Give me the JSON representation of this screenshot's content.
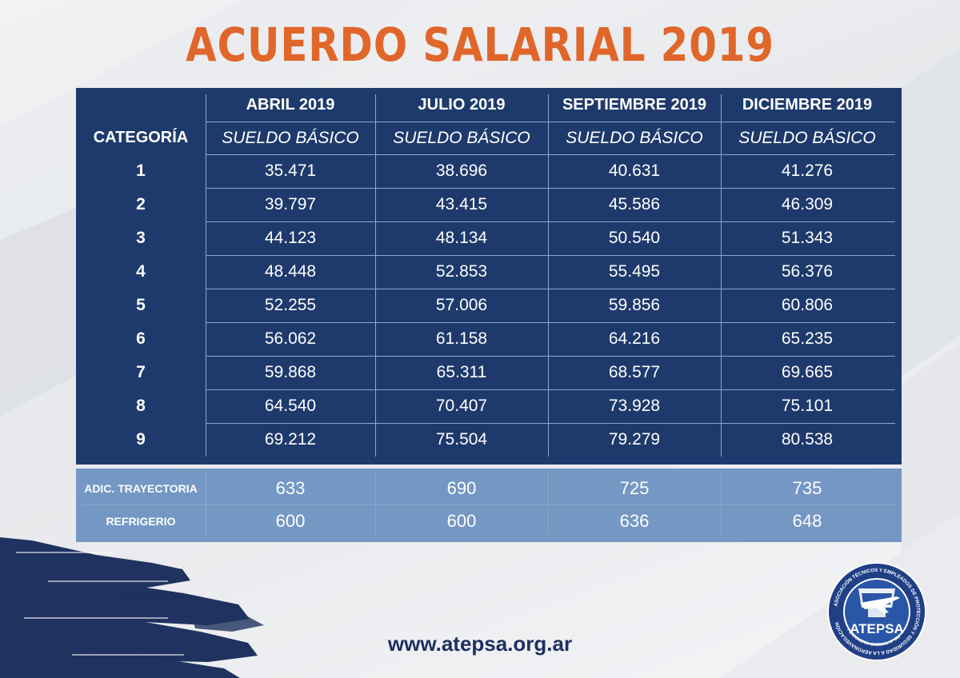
{
  "title": "ACUERDO SALARIAL 2019",
  "header": {
    "periods": [
      "ABRIL 2019",
      "JULIO 2019",
      "SEPTIEMBRE 2019",
      "DICIEMBRE 2019"
    ],
    "category_label": "CATEGORÍA",
    "sub_label": "SUELDO BÁSICO"
  },
  "rows": [
    {
      "cat": "1",
      "values": [
        "35.471",
        "38.696",
        "40.631",
        "41.276"
      ]
    },
    {
      "cat": "2",
      "values": [
        "39.797",
        "43.415",
        "45.586",
        "46.309"
      ]
    },
    {
      "cat": "3",
      "values": [
        "44.123",
        "48.134",
        "50.540",
        "51.343"
      ]
    },
    {
      "cat": "4",
      "values": [
        "48.448",
        "52.853",
        "55.495",
        "56.376"
      ]
    },
    {
      "cat": "5",
      "values": [
        "52.255",
        "57.006",
        "59.856",
        "60.806"
      ]
    },
    {
      "cat": "6",
      "values": [
        "56.062",
        "61.158",
        "64.216",
        "65.235"
      ]
    },
    {
      "cat": "7",
      "values": [
        "59.868",
        "65.311",
        "68.577",
        "69.665"
      ]
    },
    {
      "cat": "8",
      "values": [
        "64.540",
        "70.407",
        "73.928",
        "75.101"
      ]
    },
    {
      "cat": "9",
      "values": [
        "69.212",
        "75.504",
        "79.279",
        "80.538"
      ]
    }
  ],
  "extras": [
    {
      "label": "ADIC. TRAYECTORIA",
      "values": [
        "633",
        "690",
        "725",
        "735"
      ]
    },
    {
      "label": "REFRIGERIO",
      "values": [
        "600",
        "600",
        "636",
        "648"
      ]
    }
  ],
  "footer_url": "www.atepsa.org.ar",
  "logo": {
    "name": "ATEPSA",
    "ring_text": "ASOCIACIÓN TÉCNICOS Y EMPLEADOS DE PROTECCIÓN Y SEGURIDAD A LA AERONAVEGACIÓN",
    "bottom_text": "PERSONERÍA GREMIAL Nº 348"
  },
  "colors": {
    "title": "#e0662a",
    "panel_dark": "#1e3a6c",
    "panel_light": "#7497c4",
    "url": "#1e2f63",
    "brush": "#1f3260"
  }
}
